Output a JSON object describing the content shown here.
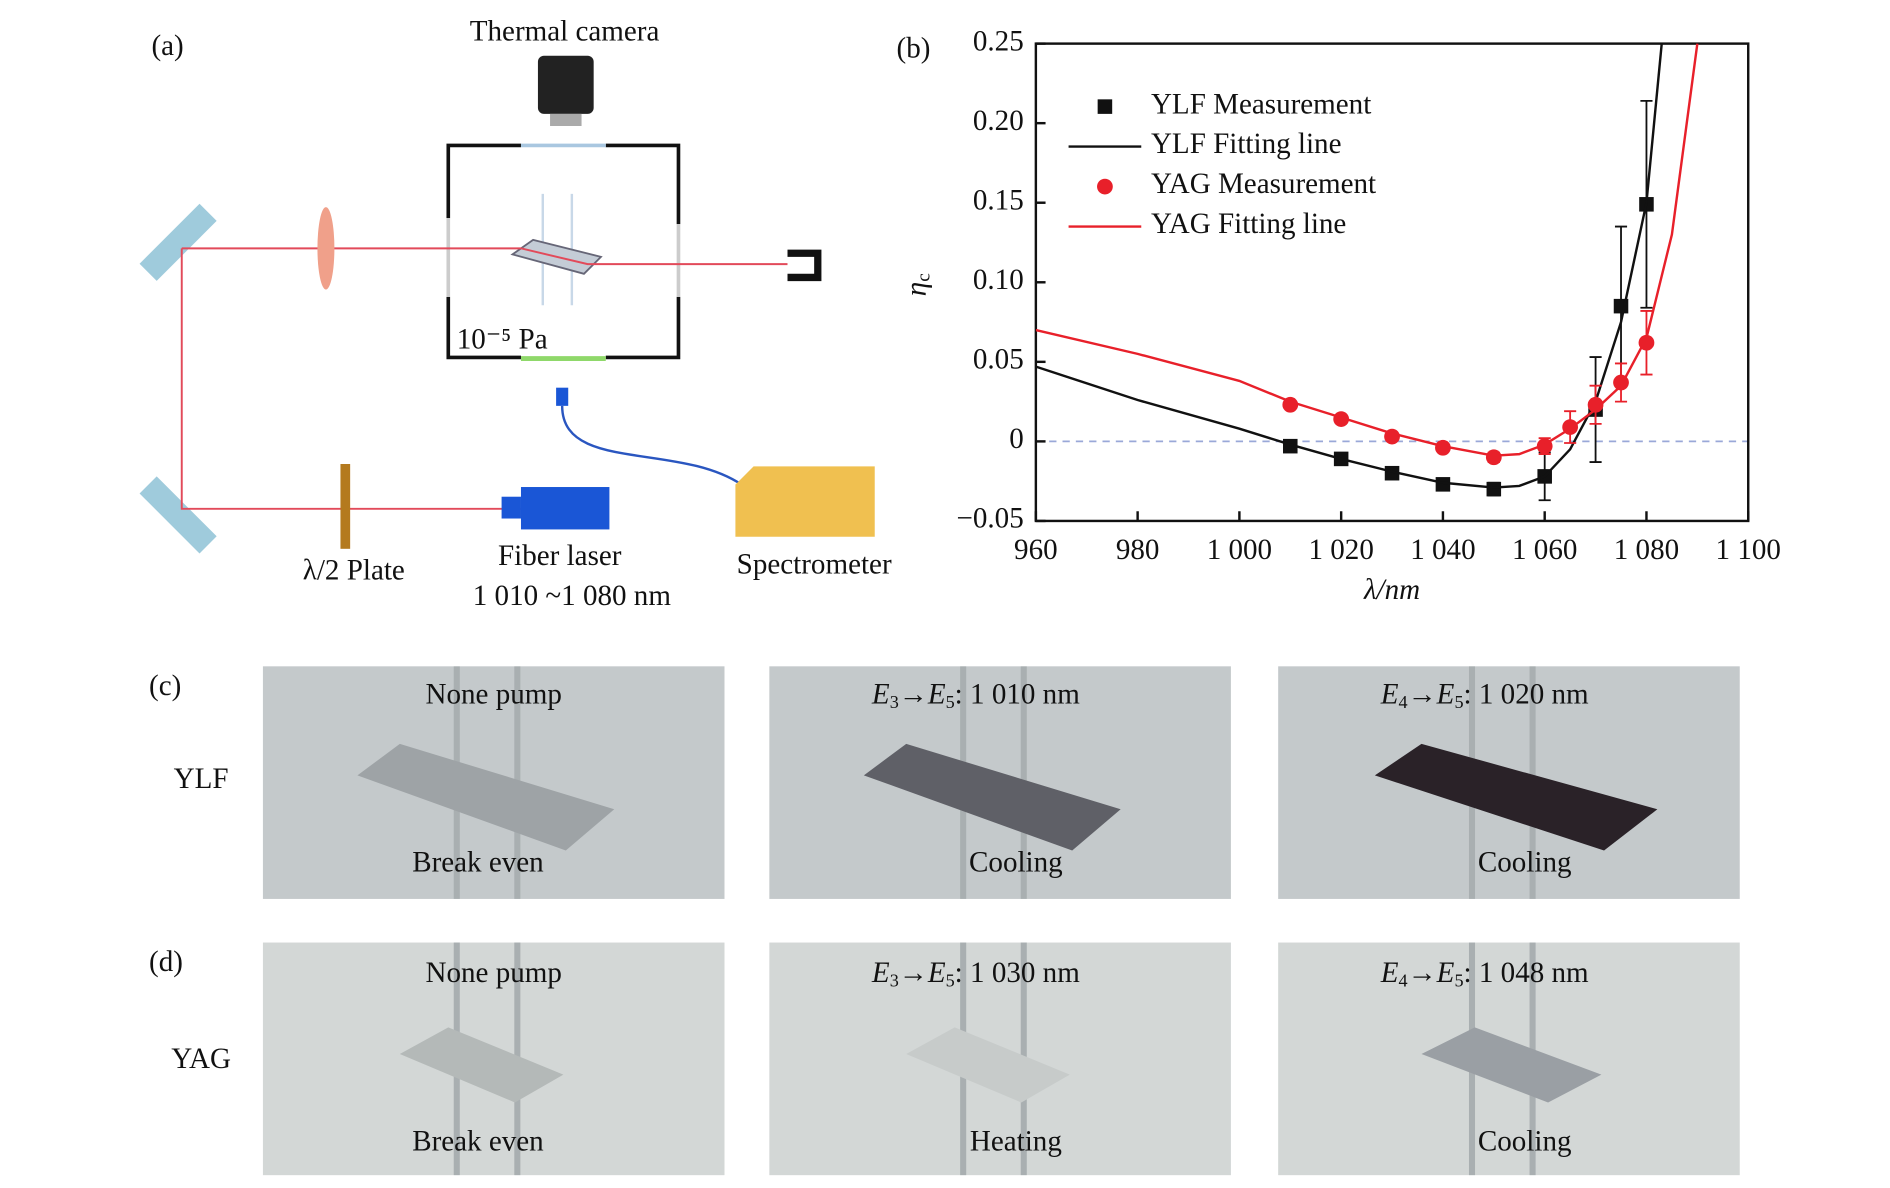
{
  "panel_a": {
    "label": "(a)",
    "camera": "Thermal camera",
    "pressure": "10⁻⁵ Pa",
    "plate": "λ/2 Plate",
    "laser": "Fiber laser",
    "laser_range": "1 010 ~1 080 nm",
    "spectrometer": "Spectrometer"
  },
  "chart_data": {
    "type": "line",
    "panel_label": "(b)",
    "x_label": "λ/nm",
    "y_label": {
      "symbol": "η",
      "subscript": "c"
    },
    "xlim": [
      960,
      1100
    ],
    "xticks": [
      960,
      980,
      {
        "value": 1000,
        "label": "1 000"
      },
      {
        "value": 1020,
        "label": "1 020"
      },
      {
        "value": 1040,
        "label": "1 040"
      },
      {
        "value": 1060,
        "label": "1 060"
      },
      {
        "value": 1080,
        "label": "1 080"
      },
      {
        "value": 1100,
        "label": "1 100"
      }
    ],
    "ylim": [
      -0.05,
      0.25
    ],
    "yticks": [
      {
        "value": -0.05,
        "label": "−0.05"
      },
      0,
      0.05,
      {
        "value": 0.1,
        "label": "0.10"
      },
      0.15,
      {
        "value": 0.2,
        "label": "0.20"
      },
      0.25
    ],
    "legend": "upper left",
    "series": [
      {
        "name": "YLF Measurement",
        "color": "#111111",
        "marker": "square",
        "x": [
          1010,
          1020,
          1030,
          1040,
          1050,
          1060,
          1070,
          1075,
          1080
        ],
        "values": [
          -0.003,
          -0.011,
          -0.02,
          -0.027,
          -0.03,
          -0.022,
          0.02,
          0.085,
          0.149
        ],
        "errors": [
          0.003,
          0.003,
          0.003,
          0.003,
          0.004,
          0.015,
          0.033,
          0.05,
          0.065
        ]
      },
      {
        "name": "YLF Fitting line",
        "color": "#111111",
        "marker": null,
        "x": [
          960,
          980,
          1000,
          1010,
          1020,
          1030,
          1040,
          1050,
          1055,
          1060,
          1065,
          1070,
          1075,
          1080,
          1083
        ],
        "values": [
          0.047,
          0.026,
          0.008,
          -0.002,
          -0.011,
          -0.019,
          -0.026,
          -0.029,
          -0.028,
          -0.022,
          -0.005,
          0.025,
          0.075,
          0.15,
          0.25
        ]
      },
      {
        "name": "YAG Measurement",
        "color": "#e8202a",
        "marker": "circle",
        "x": [
          1010,
          1020,
          1030,
          1040,
          1050,
          1060,
          1065,
          1070,
          1075,
          1080
        ],
        "values": [
          0.023,
          0.014,
          0.003,
          -0.004,
          -0.01,
          -0.003,
          0.009,
          0.023,
          0.037,
          0.062
        ],
        "errors": [
          0.002,
          0.002,
          0.002,
          0.002,
          0.003,
          0.005,
          0.01,
          0.012,
          0.012,
          0.02
        ]
      },
      {
        "name": "YAG Fitting line",
        "color": "#e8202a",
        "marker": null,
        "x": [
          960,
          980,
          1000,
          1010,
          1020,
          1030,
          1040,
          1050,
          1055,
          1060,
          1065,
          1070,
          1075,
          1080,
          1085,
          1090
        ],
        "values": [
          0.07,
          0.055,
          0.038,
          0.025,
          0.015,
          0.005,
          -0.003,
          -0.009,
          -0.008,
          -0.002,
          0.008,
          0.02,
          0.035,
          0.065,
          0.13,
          0.25
        ]
      }
    ]
  },
  "thermal_images": [
    {
      "label": "(c)",
      "material": "YLF",
      "images": [
        {
          "top": [
            "None pump"
          ],
          "bottom": "Break even",
          "sample_color": "#9ea3a6"
        },
        {
          "top": [
            "E",
            "3",
            "→E",
            "5",
            ": 1 010 nm"
          ],
          "bottom": "Cooling",
          "sample_color": "#5f6067"
        },
        {
          "top": [
            "E",
            "4",
            "→E",
            "5",
            ": 1 020 nm"
          ],
          "bottom": "Cooling",
          "sample_color": "#2a2228"
        }
      ]
    },
    {
      "label": "(d)",
      "material": "YAG",
      "images": [
        {
          "top": [
            "None pump"
          ],
          "bottom": "Break even",
          "sample_color": "#b4b9b8"
        },
        {
          "top": [
            "E",
            "3",
            "→E",
            "5",
            ": 1 030 nm"
          ],
          "bottom": "Heating",
          "sample_color": "#c7cbca"
        },
        {
          "top": [
            "E",
            "4",
            "→E",
            "5",
            ": 1 048 nm"
          ],
          "bottom": "Cooling",
          "sample_color": "#9a9fa4"
        }
      ]
    }
  ]
}
